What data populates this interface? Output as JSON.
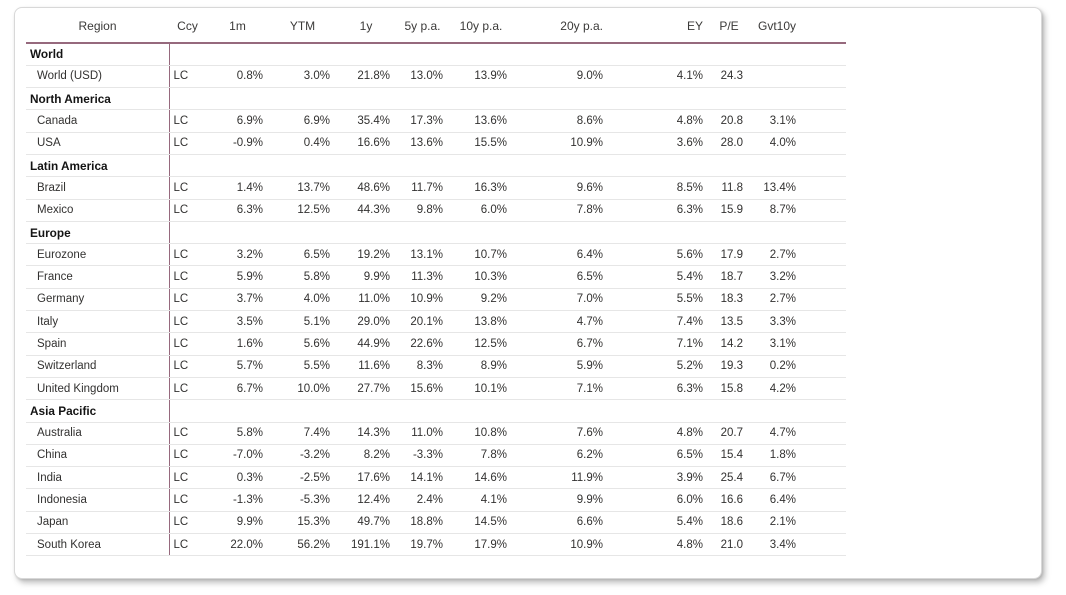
{
  "colors": {
    "accent_line": "#96697d",
    "row_line": "#e6e6e6"
  },
  "chart_data": {
    "type": "table",
    "columns": [
      {
        "key": "region",
        "label": "Region",
        "header_align": "center"
      },
      {
        "key": "ccy",
        "label": "Ccy",
        "header_align": "center"
      },
      {
        "key": "1m",
        "label": "1m",
        "header_align": "center"
      },
      {
        "key": "ytm",
        "label": "YTM",
        "header_align": "center"
      },
      {
        "key": "1y",
        "label": "1y",
        "header_align": "center"
      },
      {
        "key": "5y-pa",
        "label": "5y p.a.",
        "header_align": "center"
      },
      {
        "key": "10y-pa",
        "label": "10y p.a.",
        "header_align": "center"
      },
      {
        "key": "20y-pa",
        "label": "20y p.a.",
        "header_align": "right"
      },
      {
        "key": "ey",
        "label": "EY",
        "header_align": "right"
      },
      {
        "key": "pe",
        "label": "P/E",
        "header_align": "center"
      },
      {
        "key": "gvt10y",
        "label": "Gvt10y",
        "header_align": "right"
      }
    ],
    "groups": [
      {
        "label": "World",
        "rows": [
          {
            "region": "World (USD)",
            "values": [
              "LC",
              "0.8%",
              "3.0%",
              "21.8%",
              "13.0%",
              "13.9%",
              "9.0%",
              "4.1%",
              "24.3",
              ""
            ]
          }
        ]
      },
      {
        "label": "North America",
        "rows": [
          {
            "region": "Canada",
            "values": [
              "LC",
              "6.9%",
              "6.9%",
              "35.4%",
              "17.3%",
              "13.6%",
              "8.6%",
              "4.8%",
              "20.8",
              "3.1%"
            ]
          },
          {
            "region": "USA",
            "values": [
              "LC",
              "-0.9%",
              "0.4%",
              "16.6%",
              "13.6%",
              "15.5%",
              "10.9%",
              "3.6%",
              "28.0",
              "4.0%"
            ]
          }
        ]
      },
      {
        "label": "Latin America",
        "rows": [
          {
            "region": "Brazil",
            "values": [
              "LC",
              "1.4%",
              "13.7%",
              "48.6%",
              "11.7%",
              "16.3%",
              "9.6%",
              "8.5%",
              "11.8",
              "13.4%"
            ]
          },
          {
            "region": "Mexico",
            "values": [
              "LC",
              "6.3%",
              "12.5%",
              "44.3%",
              "9.8%",
              "6.0%",
              "7.8%",
              "6.3%",
              "15.9",
              "8.7%"
            ]
          }
        ]
      },
      {
        "label": "Europe",
        "rows": [
          {
            "region": "Eurozone",
            "values": [
              "LC",
              "3.2%",
              "6.5%",
              "19.2%",
              "13.1%",
              "10.7%",
              "6.4%",
              "5.6%",
              "17.9",
              "2.7%"
            ]
          },
          {
            "region": "France",
            "values": [
              "LC",
              "5.9%",
              "5.8%",
              "9.9%",
              "11.3%",
              "10.3%",
              "6.5%",
              "5.4%",
              "18.7",
              "3.2%"
            ]
          },
          {
            "region": "Germany",
            "values": [
              "LC",
              "3.7%",
              "4.0%",
              "11.0%",
              "10.9%",
              "9.2%",
              "7.0%",
              "5.5%",
              "18.3",
              "2.7%"
            ]
          },
          {
            "region": "Italy",
            "values": [
              "LC",
              "3.5%",
              "5.1%",
              "29.0%",
              "20.1%",
              "13.8%",
              "4.7%",
              "7.4%",
              "13.5",
              "3.3%"
            ]
          },
          {
            "region": "Spain",
            "values": [
              "LC",
              "1.6%",
              "5.6%",
              "44.9%",
              "22.6%",
              "12.5%",
              "6.7%",
              "7.1%",
              "14.2",
              "3.1%"
            ]
          },
          {
            "region": "Switzerland",
            "values": [
              "LC",
              "5.7%",
              "5.5%",
              "11.6%",
              "8.3%",
              "8.9%",
              "5.9%",
              "5.2%",
              "19.3",
              "0.2%"
            ]
          },
          {
            "region": "United Kingdom",
            "values": [
              "LC",
              "6.7%",
              "10.0%",
              "27.7%",
              "15.6%",
              "10.1%",
              "7.1%",
              "6.3%",
              "15.8",
              "4.2%"
            ]
          }
        ]
      },
      {
        "label": "Asia Pacific",
        "rows": [
          {
            "region": "Australia",
            "values": [
              "LC",
              "5.8%",
              "7.4%",
              "14.3%",
              "11.0%",
              "10.8%",
              "7.6%",
              "4.8%",
              "20.7",
              "4.7%"
            ]
          },
          {
            "region": "China",
            "values": [
              "LC",
              "-7.0%",
              "-3.2%",
              "8.2%",
              "-3.3%",
              "7.8%",
              "6.2%",
              "6.5%",
              "15.4",
              "1.8%"
            ]
          },
          {
            "region": "India",
            "values": [
              "LC",
              "0.3%",
              "-2.5%",
              "17.6%",
              "14.1%",
              "14.6%",
              "11.9%",
              "3.9%",
              "25.4",
              "6.7%"
            ]
          },
          {
            "region": "Indonesia",
            "values": [
              "LC",
              "-1.3%",
              "-5.3%",
              "12.4%",
              "2.4%",
              "4.1%",
              "9.9%",
              "6.0%",
              "16.6",
              "6.4%"
            ]
          },
          {
            "region": "Japan",
            "values": [
              "LC",
              "9.9%",
              "15.3%",
              "49.7%",
              "18.8%",
              "14.5%",
              "6.6%",
              "5.4%",
              "18.6",
              "2.1%"
            ]
          },
          {
            "region": "South Korea",
            "values": [
              "LC",
              "22.0%",
              "56.2%",
              "191.1%",
              "19.7%",
              "17.9%",
              "10.9%",
              "4.8%",
              "21.0",
              "3.4%"
            ]
          }
        ]
      }
    ]
  }
}
